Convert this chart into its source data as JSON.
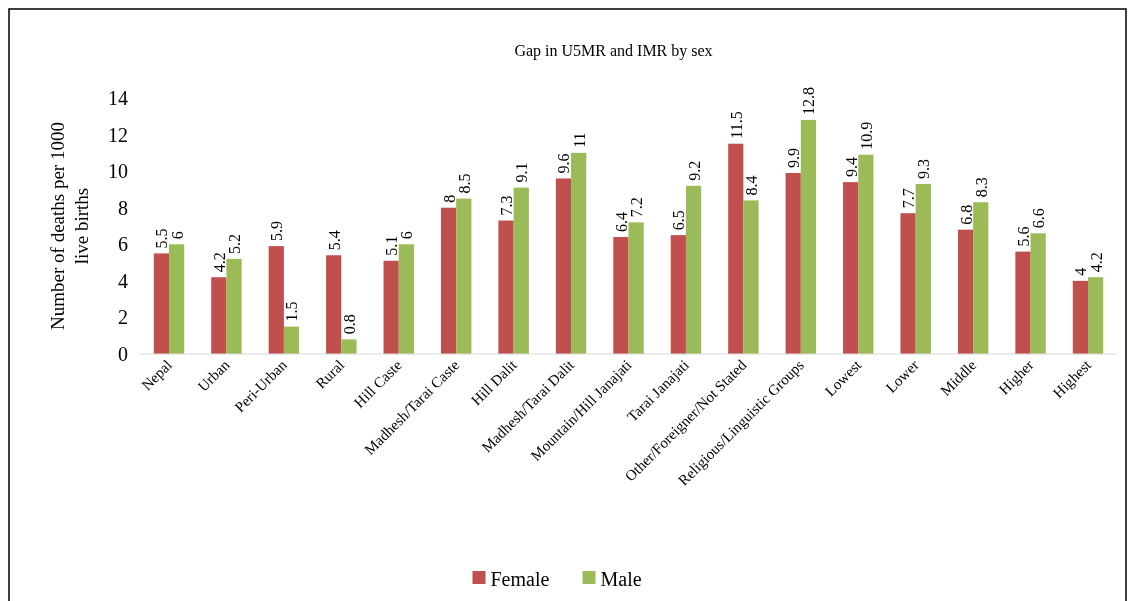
{
  "chart_data": {
    "type": "bar",
    "title": "Gap in U5MR and IMR by sex",
    "ylabel": "Number of deaths per 1000 live births",
    "categories": [
      "Nepal",
      "Urban",
      "Peri-Urban",
      "Rural",
      "Hill Caste",
      "Madhesh/Tarai Caste",
      "Hill Dalit",
      "Madhesh/Tarai Dalit",
      "Mountain/Hill Janajati",
      "Tarai Janajati",
      "Other/Foreigner/Not Stated",
      "Religious/Linguistic Groups",
      "Lowest",
      "Lower",
      "Middle",
      "Higher",
      "Highest"
    ],
    "series": [
      {
        "name": "Female",
        "color": "#c0504d",
        "values": [
          5.5,
          4.2,
          5.9,
          5.4,
          5.1,
          8,
          7.3,
          9.6,
          6.4,
          6.5,
          11.5,
          9.9,
          9.4,
          7.7,
          6.8,
          5.6,
          4
        ]
      },
      {
        "name": "Male",
        "color": "#9bbb59",
        "values": [
          6,
          5.2,
          1.5,
          0.8,
          6,
          8.5,
          9.1,
          11,
          7.2,
          9.2,
          8.4,
          12.8,
          10.9,
          9.3,
          8.3,
          6.6,
          4.2
        ]
      }
    ],
    "ylim": [
      0,
      14
    ],
    "yticks": [
      0,
      2,
      4,
      6,
      8,
      10,
      12,
      14
    ],
    "grid": false,
    "legend": "bottom",
    "data_labels": true
  }
}
